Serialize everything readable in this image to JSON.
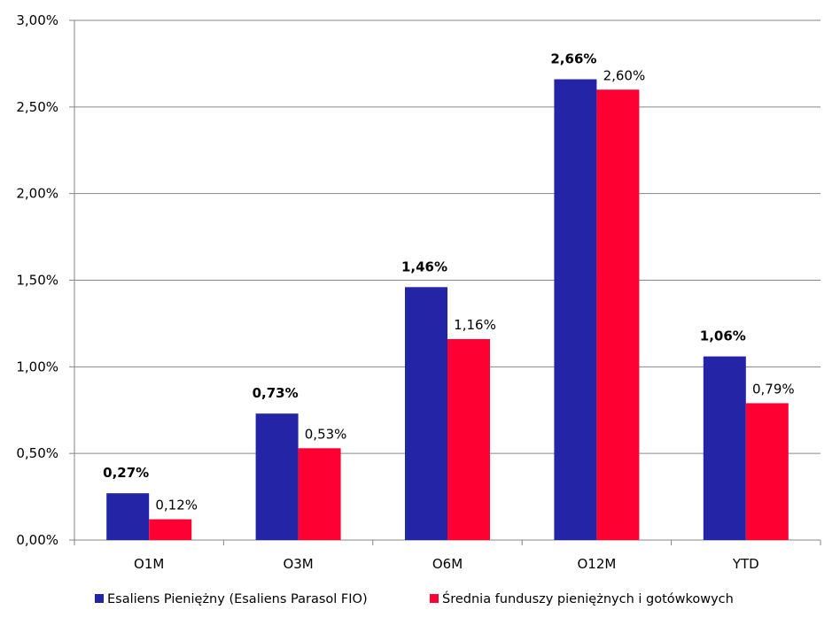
{
  "chart_data": {
    "type": "bar",
    "categories": [
      "O1M",
      "O3M",
      "O6M",
      "O12M",
      "YTD"
    ],
    "series": [
      {
        "name": "Esaliens Pieniężny (Esaliens Parasol FIO)",
        "values": [
          0.27,
          0.73,
          1.46,
          2.66,
          1.06
        ],
        "labels": [
          "0,27%",
          "0,73%",
          "1,46%",
          "2,66%",
          "1,06%"
        ],
        "color": "#2424a6",
        "label_style": "bold"
      },
      {
        "name": "Średnia funduszy pieniężnych i gotówkowych",
        "values": [
          0.12,
          0.53,
          1.16,
          2.6,
          0.79
        ],
        "labels": [
          "0,12%",
          "0,53%",
          "1,16%",
          "2,60%",
          "0,79%"
        ],
        "color": "#ff0033",
        "label_style": "normal"
      }
    ],
    "ylim": [
      0,
      3
    ],
    "yticks": [
      0,
      0.5,
      1,
      1.5,
      2,
      2.5,
      3
    ],
    "ytick_labels": [
      "0,00%",
      "0,50%",
      "1,00%",
      "1,50%",
      "2,00%",
      "2,50%",
      "3,00%"
    ],
    "grid": true,
    "legend_position": "bottom",
    "title": "",
    "xlabel": "",
    "ylabel": ""
  }
}
